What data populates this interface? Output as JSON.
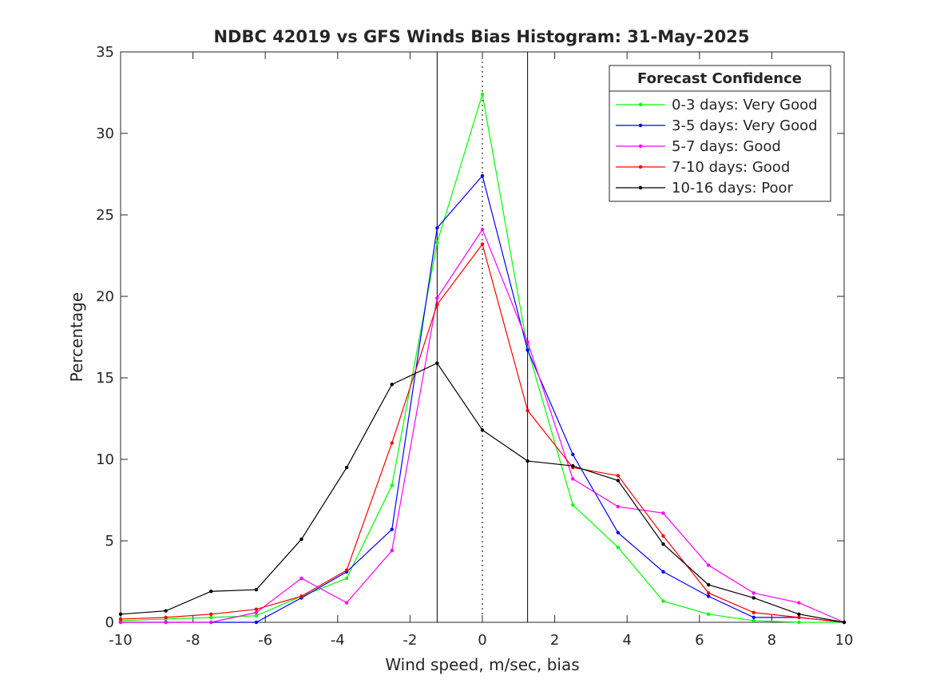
{
  "chart_data": {
    "type": "line",
    "title": "NDBC 42019 vs GFS Winds Bias Histogram: 31-May-2025",
    "xlabel": "Wind speed, m/sec, bias",
    "ylabel": "Percentage",
    "xlim": [
      -10,
      10
    ],
    "ylim": [
      0,
      35
    ],
    "xticks": [
      -10,
      -8,
      -6,
      -4,
      -2,
      0,
      2,
      4,
      6,
      8,
      10
    ],
    "yticks": [
      0,
      5,
      10,
      15,
      20,
      25,
      30,
      35
    ],
    "vertical_lines": [
      {
        "x": -1.25,
        "style": "solid"
      },
      {
        "x": 0,
        "style": "dotted"
      },
      {
        "x": 1.25,
        "style": "solid"
      }
    ],
    "legend": {
      "title": "Forecast Confidence",
      "position": "top-right"
    },
    "grid": false,
    "x": [
      -10,
      -8.75,
      -7.5,
      -6.25,
      -5,
      -3.75,
      -2.5,
      -1.25,
      0,
      1.25,
      2.5,
      3.75,
      5,
      6.25,
      7.5,
      8.75,
      10
    ],
    "series": [
      {
        "name": "0-3 days: Very Good",
        "color": "#00ff00",
        "values": [
          0.1,
          0.2,
          0.3,
          0.4,
          1.6,
          2.7,
          8.4,
          23.3,
          32.4,
          16.8,
          7.2,
          4.6,
          1.3,
          0.5,
          0.1,
          0.0,
          0.0
        ]
      },
      {
        "name": "3-5 days: Very Good",
        "color": "#0000ff",
        "values": [
          0.0,
          0.0,
          0.0,
          0.0,
          1.5,
          3.1,
          5.7,
          24.2,
          27.4,
          16.7,
          10.3,
          5.5,
          3.1,
          1.6,
          0.3,
          0.3,
          0.0
        ]
      },
      {
        "name": "5-7 days: Good",
        "color": "#ff00ff",
        "values": [
          0.0,
          0.0,
          0.0,
          0.6,
          2.7,
          1.2,
          4.4,
          19.9,
          24.1,
          17.2,
          8.8,
          7.1,
          6.7,
          3.5,
          1.8,
          1.2,
          0.0
        ]
      },
      {
        "name": "7-10 days: Good",
        "color": "#ff0000",
        "values": [
          0.2,
          0.3,
          0.5,
          0.8,
          1.6,
          3.2,
          11.0,
          19.5,
          23.2,
          13.0,
          9.5,
          9.0,
          5.3,
          1.8,
          0.6,
          0.3,
          0.0
        ]
      },
      {
        "name": "10-16 days: Poor",
        "color": "#000000",
        "values": [
          0.5,
          0.7,
          1.9,
          2.0,
          5.1,
          9.5,
          14.6,
          15.9,
          11.8,
          9.9,
          9.6,
          8.7,
          4.8,
          2.3,
          1.5,
          0.5,
          0.0
        ]
      }
    ]
  }
}
